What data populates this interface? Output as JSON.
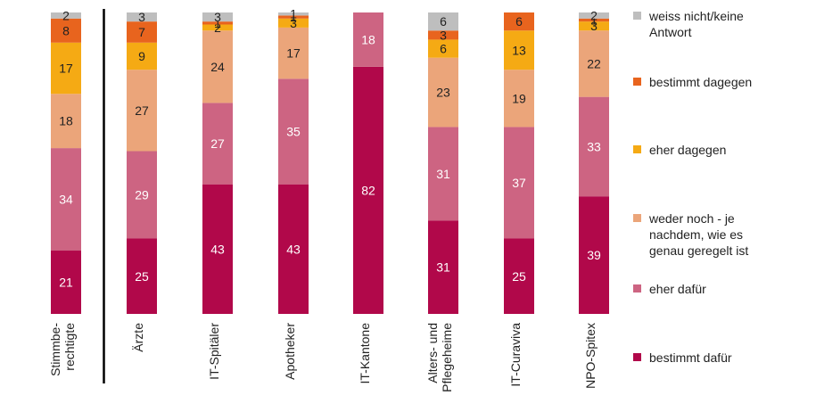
{
  "chart_data": {
    "type": "bar",
    "stacked": true,
    "orientation": "vertical",
    "categories": [
      "Stimmbe-\nrechtigte",
      "Ärzte",
      "IT-Spitäler",
      "Apotheker",
      "IT-Kantone",
      "Alters- und\nPflegeheime",
      "IT-Curaviva",
      "NPO-Spitex"
    ],
    "ylim": [
      0,
      100
    ],
    "grid": false,
    "legend_position": "right",
    "separator_after_category": 0,
    "series": [
      {
        "name": "bestimmt dafür",
        "color": "#B1084A",
        "label_color": "#ffffff",
        "values": [
          21,
          25,
          43,
          43,
          82,
          31,
          25,
          39
        ]
      },
      {
        "name": "eher dafür",
        "color": "#CD6482",
        "label_color": "#ffffff",
        "values": [
          34,
          29,
          27,
          35,
          18,
          31,
          37,
          33
        ]
      },
      {
        "name": "weder noch - je nachdem, wie es genau geregelt ist",
        "color": "#EBA57A",
        "label_color": "#222222",
        "values": [
          18,
          27,
          24,
          17,
          0,
          23,
          19,
          22
        ]
      },
      {
        "name": "eher dagegen",
        "color": "#F5AA14",
        "label_color": "#222222",
        "values": [
          17,
          9,
          2,
          3,
          0,
          6,
          13,
          3
        ]
      },
      {
        "name": "bestimmt dagegen",
        "color": "#E8641E",
        "label_color": "#222222",
        "values": [
          8,
          7,
          1,
          1,
          0,
          3,
          6,
          1
        ]
      },
      {
        "name": "weiss nicht/keine Antwort",
        "color": "#BEBEBE",
        "label_color": "#222222",
        "values": [
          2,
          3,
          3,
          1,
          0,
          6,
          0,
          2
        ]
      }
    ],
    "legend_labels": [
      "weiss nicht/keine\nAntwort",
      "bestimmt dagegen",
      "eher dagegen",
      "weder noch - je\nnachdem, wie es\ngenau geregelt ist",
      "eher dafür",
      "bestimmt dafür"
    ],
    "legend_colors": [
      "#BEBEBE",
      "#E8641E",
      "#F5AA14",
      "#EBA57A",
      "#CD6482",
      "#B1084A"
    ]
  }
}
